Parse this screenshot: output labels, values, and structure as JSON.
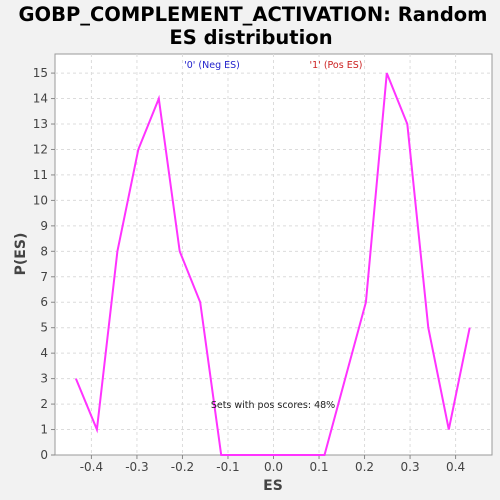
{
  "chart_data": {
    "type": "line",
    "title_line1": "GOBP_COMPLEMENT_ACTIVATION: Random",
    "title_line2": "ES distribution",
    "xlabel": "ES",
    "ylabel": "P(ES)",
    "xlim": [
      -0.48,
      0.48
    ],
    "ylim": [
      0,
      15.75
    ],
    "x_ticks": [
      -0.4,
      -0.3,
      -0.2,
      -0.1,
      0.0,
      0.1,
      0.2,
      0.3,
      0.4
    ],
    "x_tick_labels": [
      "-0.4",
      "-0.3",
      "-0.2",
      "-0.1",
      "0.0",
      "0.1",
      "0.2",
      "0.3",
      "0.4"
    ],
    "y_ticks": [
      0,
      1,
      2,
      3,
      4,
      5,
      6,
      7,
      8,
      9,
      10,
      11,
      12,
      13,
      14,
      15
    ],
    "y_tick_labels": [
      "0",
      "1",
      "2",
      "3",
      "4",
      "5",
      "6",
      "7",
      "8",
      "9",
      "10",
      "11",
      "12",
      "13",
      "14",
      "15"
    ],
    "grid": true,
    "series": [
      {
        "color": "#ff33ff",
        "x": [
          -0.434,
          -0.388,
          -0.343,
          -0.297,
          -0.252,
          -0.206,
          -0.161,
          -0.115,
          0.112,
          0.203,
          0.249,
          0.294,
          0.34,
          0.385,
          0.431
        ],
        "y": [
          3,
          1,
          8,
          12,
          14,
          8,
          6,
          0,
          0,
          6,
          15,
          13,
          5,
          1,
          5
        ]
      }
    ],
    "legend": [
      {
        "label": "'0' (Neg ES)",
        "color": "#2222cc"
      },
      {
        "label": "'1' (Pos ES)",
        "color": "#cc2222"
      }
    ],
    "annotation": "Sets with pos scores: 48%"
  }
}
